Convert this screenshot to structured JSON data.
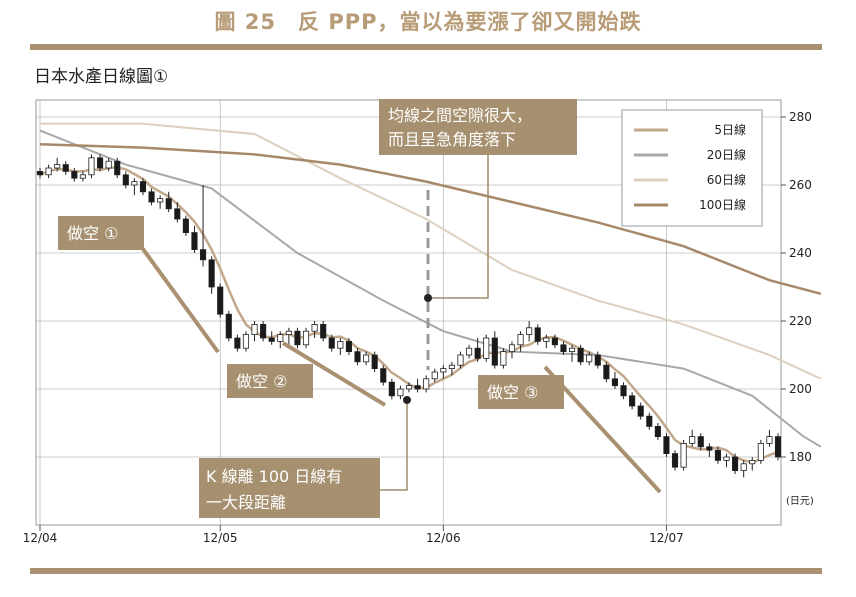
{
  "figure_title": "圖 25　反 PPP，當以為要漲了卻又開始跌",
  "chart_title": "日本水產日線圖①",
  "colors": {
    "accent": "#a89070",
    "ma5": "#c2a88a",
    "ma20": "#a8a8a8",
    "ma60": "#ddd0bf",
    "ma100": "#a8886a",
    "annotation_box": "#a6906f",
    "arrow_line": "#a08a6c"
  },
  "annotations": {
    "gap_note": {
      "line1": "均線之間空隙很大，",
      "line2": "而且呈急角度落下"
    },
    "distance_note": {
      "line1": "K 線離 100 日線有",
      "line2": "一大段距離"
    },
    "short1": "做空 ①",
    "short2": "做空 ②",
    "short3": "做空 ③"
  },
  "chart_data": {
    "type": "candlestick",
    "title": "日本水產日線圖①",
    "y_unit": "(日元)",
    "ylim": [
      160,
      285
    ],
    "y_ticks": [
      180,
      200,
      220,
      240,
      260,
      280
    ],
    "x_ticks": [
      {
        "label": "12/04",
        "index": 0
      },
      {
        "label": "12/05",
        "index": 21
      },
      {
        "label": "12/06",
        "index": 47
      },
      {
        "label": "12/07",
        "index": 73
      }
    ],
    "legend": [
      "5日線",
      "20日線",
      "60日線",
      "100日線"
    ],
    "legend_position": "top-right",
    "candles": [
      [
        264,
        265,
        262,
        263
      ],
      [
        263,
        266,
        262,
        265
      ],
      [
        265,
        268,
        264,
        266
      ],
      [
        266,
        267,
        263,
        264
      ],
      [
        264,
        265,
        261,
        262
      ],
      [
        262,
        264,
        261,
        263
      ],
      [
        263,
        269,
        262,
        268
      ],
      [
        268,
        269,
        264,
        265
      ],
      [
        265,
        268,
        264,
        267
      ],
      [
        267,
        268,
        262,
        263
      ],
      [
        263,
        264,
        259,
        260
      ],
      [
        260,
        262,
        257,
        261
      ],
      [
        261,
        262,
        257,
        258
      ],
      [
        258,
        259,
        254,
        255
      ],
      [
        255,
        257,
        253,
        256
      ],
      [
        256,
        258,
        252,
        253
      ],
      [
        253,
        255,
        249,
        250
      ],
      [
        250,
        251,
        245,
        246
      ],
      [
        246,
        248,
        240,
        241
      ],
      [
        241,
        260,
        236,
        238
      ],
      [
        238,
        239,
        228,
        230
      ],
      [
        230,
        231,
        221,
        222
      ],
      [
        222,
        223,
        214,
        215
      ],
      [
        215,
        216,
        211,
        212
      ],
      [
        212,
        217,
        211,
        216
      ],
      [
        216,
        220,
        214,
        219
      ],
      [
        219,
        220,
        214,
        215
      ],
      [
        215,
        217,
        213,
        214
      ],
      [
        214,
        217,
        212,
        216
      ],
      [
        216,
        218,
        213,
        217
      ],
      [
        217,
        218,
        212,
        213
      ],
      [
        213,
        218,
        212,
        217
      ],
      [
        217,
        220,
        215,
        219
      ],
      [
        219,
        220,
        214,
        215
      ],
      [
        215,
        216,
        211,
        212
      ],
      [
        212,
        215,
        210,
        214
      ],
      [
        214,
        215,
        210,
        211
      ],
      [
        211,
        212,
        207,
        208
      ],
      [
        208,
        211,
        207,
        210
      ],
      [
        210,
        211,
        205,
        206
      ],
      [
        206,
        207,
        201,
        202
      ],
      [
        202,
        203,
        197,
        198
      ],
      [
        198,
        201,
        197,
        200
      ],
      [
        200,
        202,
        199,
        201
      ],
      [
        201,
        203,
        199,
        200
      ],
      [
        200,
        204,
        199,
        203
      ],
      [
        203,
        206,
        202,
        205
      ],
      [
        205,
        207,
        203,
        206
      ],
      [
        206,
        208,
        204,
        207
      ],
      [
        207,
        211,
        206,
        210
      ],
      [
        210,
        213,
        209,
        212
      ],
      [
        212,
        215,
        208,
        209
      ],
      [
        209,
        216,
        208,
        215
      ],
      [
        215,
        217,
        206,
        207
      ],
      [
        207,
        212,
        206,
        211
      ],
      [
        211,
        214,
        209,
        213
      ],
      [
        213,
        217,
        211,
        216
      ],
      [
        216,
        220,
        214,
        218
      ],
      [
        218,
        219,
        213,
        214
      ],
      [
        214,
        216,
        212,
        215
      ],
      [
        215,
        216,
        212,
        213
      ],
      [
        213,
        214,
        210,
        211
      ],
      [
        211,
        213,
        208,
        212
      ],
      [
        212,
        213,
        207,
        208
      ],
      [
        208,
        211,
        207,
        210
      ],
      [
        210,
        211,
        206,
        207
      ],
      [
        207,
        208,
        202,
        203
      ],
      [
        203,
        205,
        200,
        201
      ],
      [
        201,
        202,
        197,
        198
      ],
      [
        198,
        199,
        194,
        195
      ],
      [
        195,
        196,
        191,
        192
      ],
      [
        192,
        193,
        188,
        189
      ],
      [
        189,
        190,
        185,
        186
      ],
      [
        186,
        187,
        180,
        181
      ],
      [
        181,
        182,
        176,
        177
      ],
      [
        177,
        185,
        176,
        184
      ],
      [
        184,
        188,
        183,
        186
      ],
      [
        186,
        187,
        182,
        183
      ],
      [
        183,
        184,
        180,
        182
      ],
      [
        182,
        183,
        178,
        179
      ],
      [
        179,
        181,
        177,
        180
      ],
      [
        180,
        181,
        175,
        176
      ],
      [
        176,
        179,
        174,
        178
      ],
      [
        178,
        180,
        176,
        179
      ],
      [
        179,
        185,
        178,
        184
      ],
      [
        184,
        188,
        183,
        186
      ],
      [
        186,
        187,
        179,
        180
      ]
    ],
    "series": [
      {
        "name": "5日線",
        "key": "ma5"
      },
      {
        "name": "20日線",
        "key": "ma20",
        "points": [
          [
            0,
            276
          ],
          [
            10,
            266
          ],
          [
            20,
            259
          ],
          [
            30,
            240
          ],
          [
            40,
            226
          ],
          [
            47,
            217
          ],
          [
            55,
            211
          ],
          [
            65,
            210
          ],
          [
            75,
            206
          ],
          [
            83,
            198
          ],
          [
            89,
            186
          ],
          [
            91,
            183
          ]
        ]
      },
      {
        "name": "60日線",
        "key": "ma60",
        "points": [
          [
            0,
            278
          ],
          [
            12,
            278
          ],
          [
            25,
            275
          ],
          [
            35,
            262
          ],
          [
            45,
            250
          ],
          [
            55,
            235
          ],
          [
            65,
            226
          ],
          [
            75,
            219
          ],
          [
            85,
            210
          ],
          [
            91,
            203
          ]
        ]
      },
      {
        "name": "100日線",
        "key": "ma100",
        "points": [
          [
            0,
            272
          ],
          [
            12,
            271
          ],
          [
            25,
            269
          ],
          [
            35,
            266
          ],
          [
            45,
            261
          ],
          [
            55,
            255
          ],
          [
            65,
            249
          ],
          [
            75,
            242
          ],
          [
            85,
            232
          ],
          [
            91,
            228
          ]
        ]
      }
    ]
  }
}
